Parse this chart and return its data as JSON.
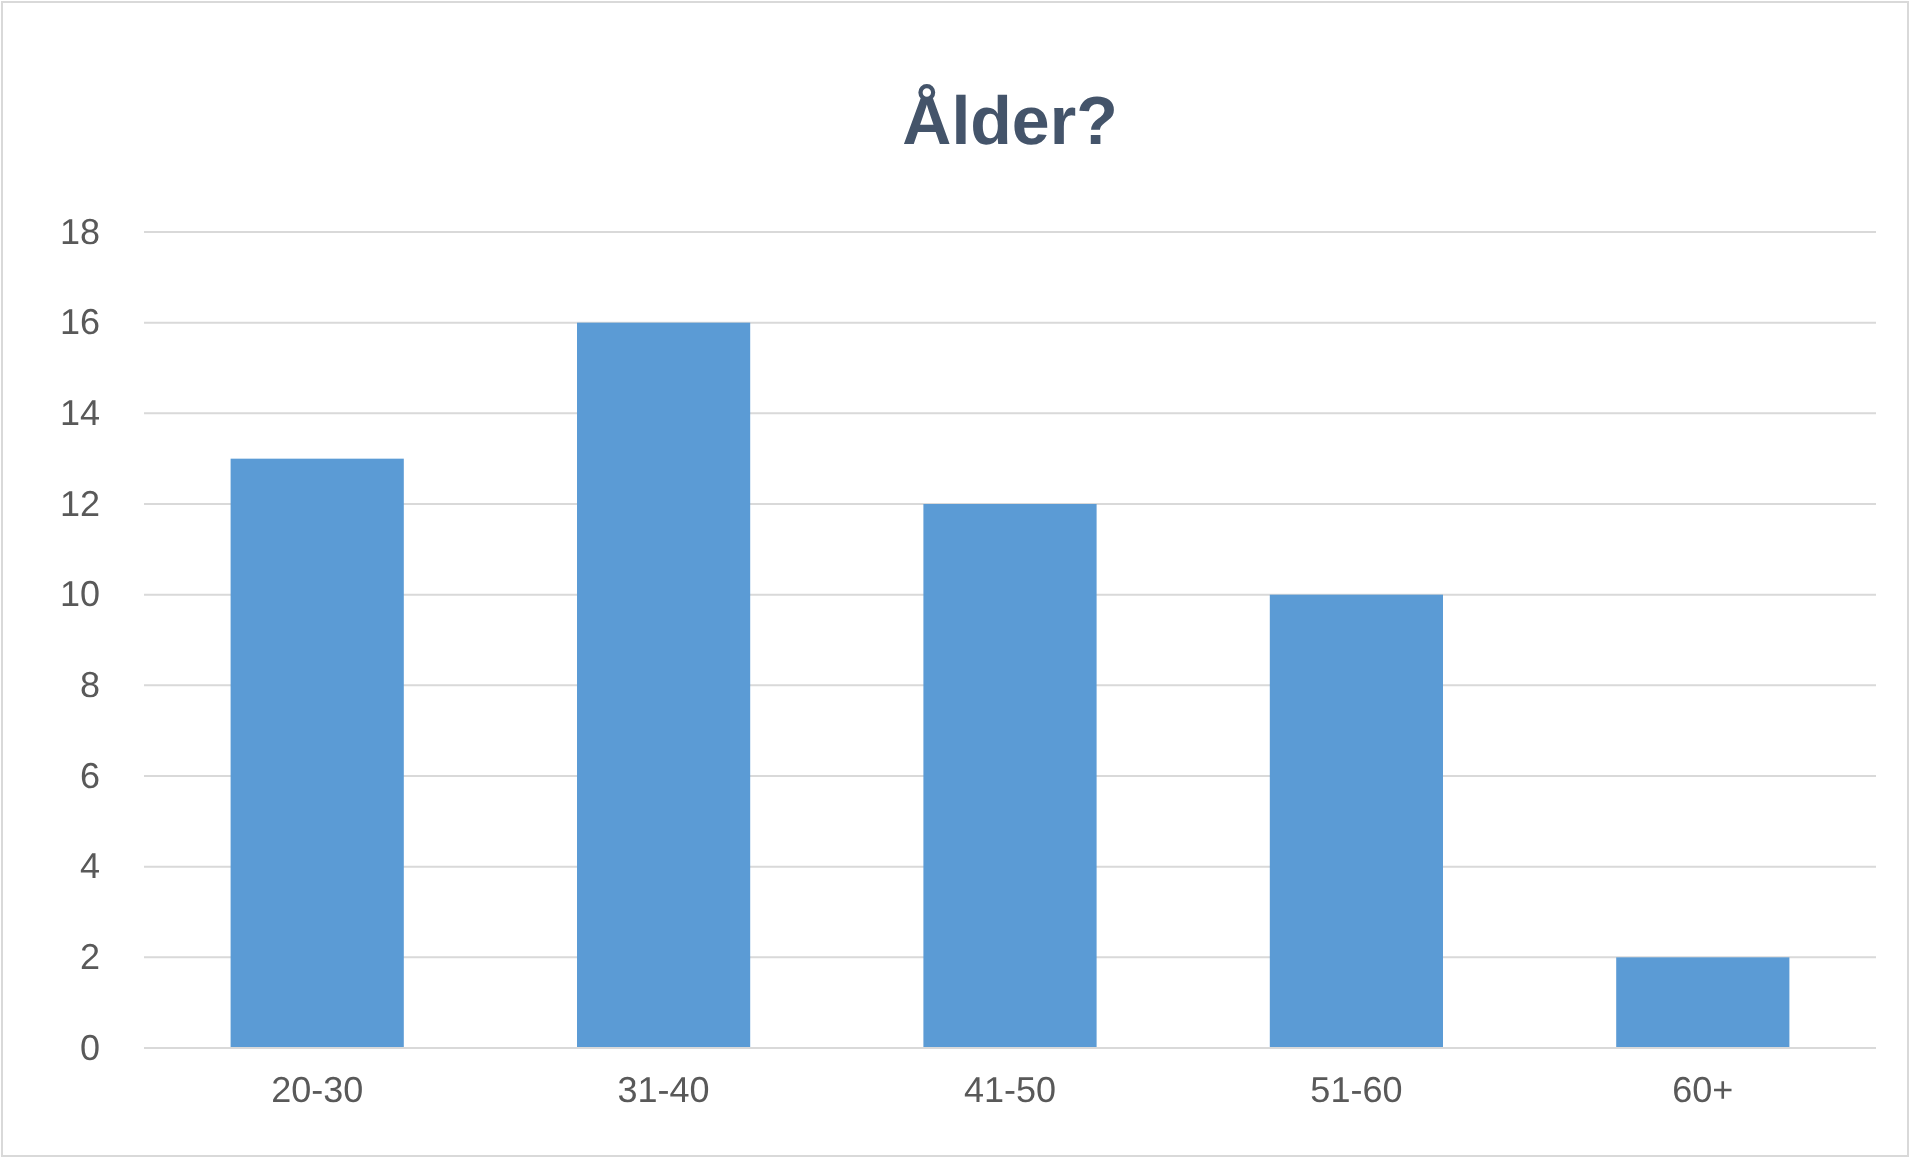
{
  "chart_data": {
    "type": "bar",
    "title": "Ålder?",
    "categories": [
      "20-30",
      "31-40",
      "41-50",
      "51-60",
      "60+"
    ],
    "values": [
      13,
      16,
      12,
      10,
      2
    ],
    "color": "#5b9bd5",
    "ylim": [
      0,
      18
    ],
    "yticks": [
      0,
      2,
      4,
      6,
      8,
      10,
      12,
      14,
      16,
      18
    ],
    "grid": "y"
  }
}
